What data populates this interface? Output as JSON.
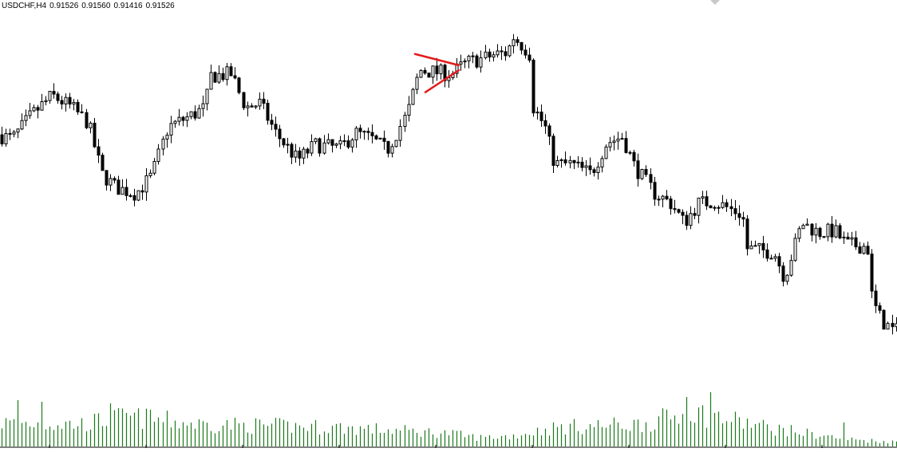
{
  "header": {
    "symbol_timeframe": "USDCHF,H4",
    "open": "0.91526",
    "high": "0.91560",
    "low": "0.91416",
    "close": "0.91526"
  },
  "colors": {
    "background": "#ffffff",
    "candle": "#000000",
    "volume": "#1a7a1a",
    "pattern_line": "#e31b1b"
  },
  "chart_data": {
    "type": "candlestick",
    "symbol": "USDCHF",
    "timeframe": "H4",
    "price_path": [
      [
        0,
        0.945
      ],
      [
        20,
        0.9446
      ],
      [
        45,
        0.9471
      ],
      [
        70,
        0.949
      ],
      [
        95,
        0.9478
      ],
      [
        115,
        0.9462
      ],
      [
        132,
        0.941
      ],
      [
        150,
        0.9396
      ],
      [
        175,
        0.939
      ],
      [
        195,
        0.9408
      ],
      [
        215,
        0.9458
      ],
      [
        245,
        0.947
      ],
      [
        262,
        0.9478
      ],
      [
        268,
        0.951
      ],
      [
        295,
        0.9512
      ],
      [
        312,
        0.9478
      ],
      [
        330,
        0.9482
      ],
      [
        350,
        0.9452
      ],
      [
        378,
        0.9424
      ],
      [
        400,
        0.944
      ],
      [
        430,
        0.9436
      ],
      [
        450,
        0.9452
      ],
      [
        470,
        0.9446
      ],
      [
        490,
        0.9434
      ],
      [
        515,
        0.9472
      ],
      [
        530,
        0.9516
      ],
      [
        550,
        0.9514
      ],
      [
        570,
        0.9512
      ],
      [
        590,
        0.9524
      ],
      [
        610,
        0.9528
      ],
      [
        625,
        0.9532
      ],
      [
        640,
        0.9534
      ],
      [
        648,
        0.955
      ],
      [
        668,
        0.9534
      ],
      [
        672,
        0.948
      ],
      [
        688,
        0.9458
      ],
      [
        700,
        0.942
      ],
      [
        720,
        0.942
      ],
      [
        745,
        0.941
      ],
      [
        765,
        0.9442
      ],
      [
        785,
        0.9448
      ],
      [
        800,
        0.9418
      ],
      [
        825,
        0.939
      ],
      [
        845,
        0.938
      ],
      [
        862,
        0.936
      ],
      [
        880,
        0.938
      ],
      [
        900,
        0.9382
      ],
      [
        935,
        0.9368
      ],
      [
        940,
        0.9334
      ],
      [
        975,
        0.933
      ],
      [
        988,
        0.9304
      ],
      [
        1010,
        0.936
      ],
      [
        1030,
        0.935
      ],
      [
        1050,
        0.9352
      ],
      [
        1065,
        0.9338
      ],
      [
        1092,
        0.9336
      ],
      [
        1098,
        0.928
      ],
      [
        1110,
        0.926
      ],
      [
        1124,
        0.925
      ]
    ],
    "volume_profile": [
      [
        0,
        32
      ],
      [
        100,
        30
      ],
      [
        160,
        40
      ],
      [
        250,
        30
      ],
      [
        420,
        26
      ],
      [
        560,
        18
      ],
      [
        600,
        12
      ],
      [
        640,
        14
      ],
      [
        700,
        26
      ],
      [
        800,
        30
      ],
      [
        870,
        46
      ],
      [
        960,
        26
      ],
      [
        1060,
        10
      ],
      [
        1124,
        6
      ]
    ],
    "volume_spikes": [
      [
        24,
        58
      ],
      [
        50,
        56
      ],
      [
        140,
        54
      ],
      [
        146,
        48
      ],
      [
        188,
        46
      ],
      [
        862,
        62
      ],
      [
        888,
        68
      ],
      [
        1056,
        30
      ]
    ],
    "pattern": {
      "type": "symmetrical triangle",
      "upper_line": [
        [
          520,
          0.95325
        ],
        [
          575,
          0.9521
        ]
      ],
      "lower_line": [
        [
          533,
          0.94935
        ],
        [
          575,
          0.9516
        ]
      ]
    },
    "grid": false,
    "ylim": [
      0.9205,
      0.9573
    ]
  }
}
